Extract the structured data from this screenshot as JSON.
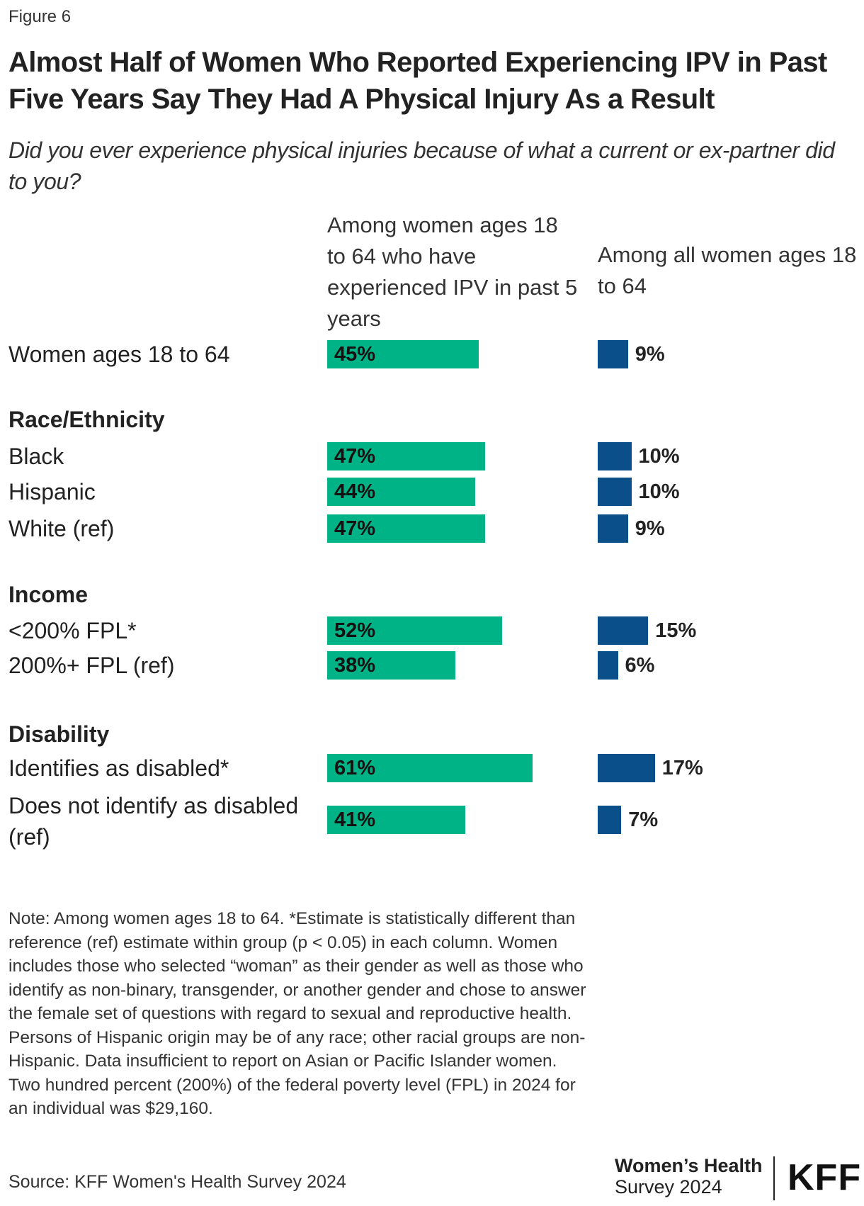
{
  "figure_label": "Figure 6",
  "title": "Almost Half of Women Who Reported Experiencing IPV in Past Five Years Say They Had A Physical Injury As a Result",
  "subtitle": "Did you ever experience physical injuries because of what a current or ex-partner did to you?",
  "colors": {
    "green": "#00b386",
    "blue": "#0b4f8a"
  },
  "chart_data": {
    "type": "bar",
    "orientation": "horizontal",
    "title": "Almost Half of Women Who Reported Experiencing IPV in Past Five Years Say They Had A Physical Injury As a Result",
    "series": [
      {
        "name": "Among women ages 18 to 64 who have experienced IPV in past 5 years",
        "color": "#00b386"
      },
      {
        "name": "Among all women ages 18 to 64",
        "color": "#0b4f8a"
      }
    ],
    "value_unit": "%",
    "rows": [
      {
        "label": "Women ages 18 to 64",
        "group": "",
        "ipv": 45,
        "all": 9
      },
      {
        "label": "Black",
        "group": "Race/Ethnicity",
        "ipv": 47,
        "all": 10
      },
      {
        "label": "Hispanic",
        "group": "Race/Ethnicity",
        "ipv": 44,
        "all": 10
      },
      {
        "label": "White (ref)",
        "group": "Race/Ethnicity",
        "ipv": 47,
        "all": 9
      },
      {
        "label": "<200% FPL*",
        "group": "Income",
        "ipv": 52,
        "all": 15
      },
      {
        "label": "200%+ FPL (ref)",
        "group": "Income",
        "ipv": 38,
        "all": 6
      },
      {
        "label": "Identifies as disabled*",
        "group": "Disability",
        "ipv": 61,
        "all": 17
      },
      {
        "label": "Does not identify as disabled (ref)",
        "group": "Disability",
        "ipv": 41,
        "all": 7
      }
    ],
    "groups": [
      "Race/Ethnicity",
      "Income",
      "Disability"
    ]
  },
  "notes": [
    "Note: Among women ages 18 to 64. *Estimate is statistically different than reference (ref) estimate within group (p < 0.05) in each column. Women includes those who selected “woman” as their gender as well as those who identify as non-binary, transgender, or another gender and chose to answer the female set of questions with regard to sexual and reproductive health.",
    "Persons of Hispanic origin may be of any race; other racial groups are non-Hispanic. Data insufficient to report on Asian or Pacific Islander women.",
    "Two hundred percent (200%) of the federal poverty level (FPL) in 2024 for an individual was $29,160."
  ],
  "source": "Source: KFF Women's Health Survey 2024",
  "brand": {
    "line1": "Women’s Health",
    "line2": "Survey 2024",
    "logo": "KFF"
  }
}
